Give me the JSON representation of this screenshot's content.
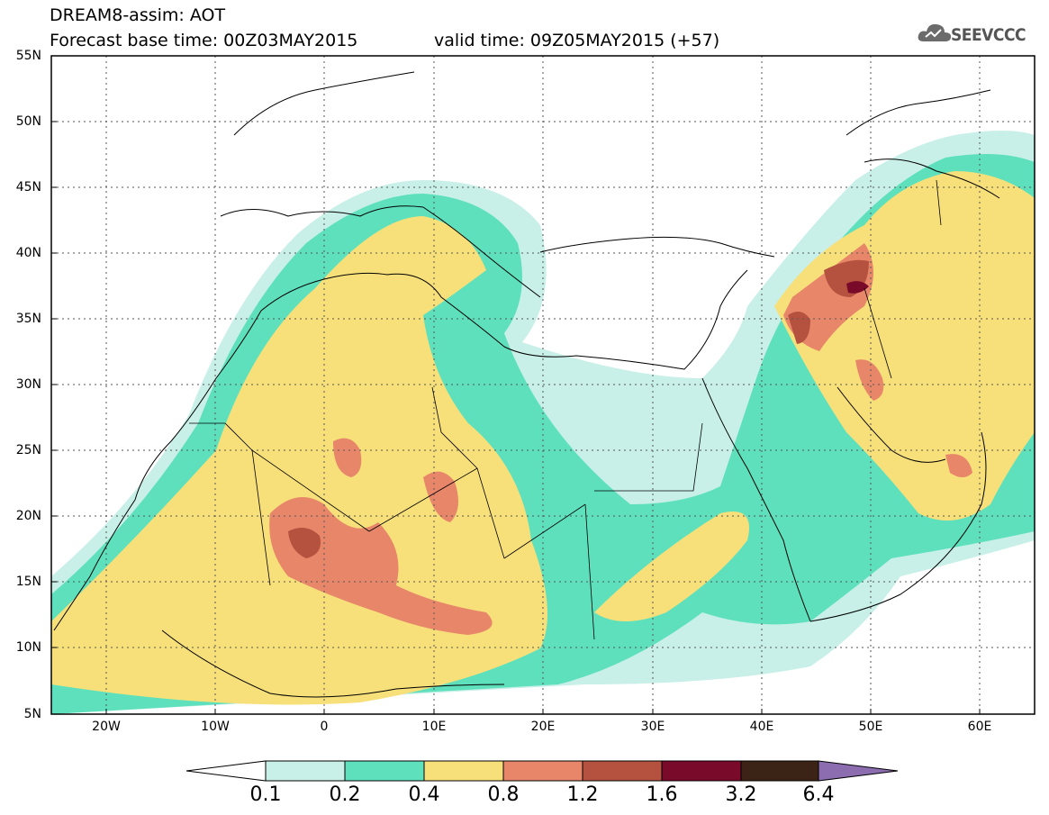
{
  "header": {
    "line1": "DREAM8-assim: AOT",
    "line2": "Forecast base time: 00Z03MAY2015",
    "valid": "valid time: 09Z05MAY2015 (+57)",
    "logo_text": "SEEVCCC"
  },
  "map": {
    "lat_labels": [
      "55N",
      "50N",
      "45N",
      "40N",
      "35N",
      "30N",
      "25N",
      "20N",
      "15N",
      "10N",
      "5N"
    ],
    "lon_labels": [
      "20W",
      "10W",
      "0",
      "10E",
      "20E",
      "30E",
      "40E",
      "50E",
      "60E"
    ],
    "lat_range": [
      5,
      55
    ],
    "lon_range": [
      -25,
      65
    ],
    "grid": "dotted"
  },
  "colorbar": {
    "levels": [
      "0.1",
      "0.2",
      "0.4",
      "0.8",
      "1.2",
      "1.6",
      "3.2",
      "6.4"
    ],
    "colors": [
      "#ffffff",
      "#c8f0e8",
      "#5ee0bd",
      "#f7e07a",
      "#e8866a",
      "#b5523f",
      "#7a0a2a",
      "#3b2415",
      "#8b6db0"
    ]
  }
}
